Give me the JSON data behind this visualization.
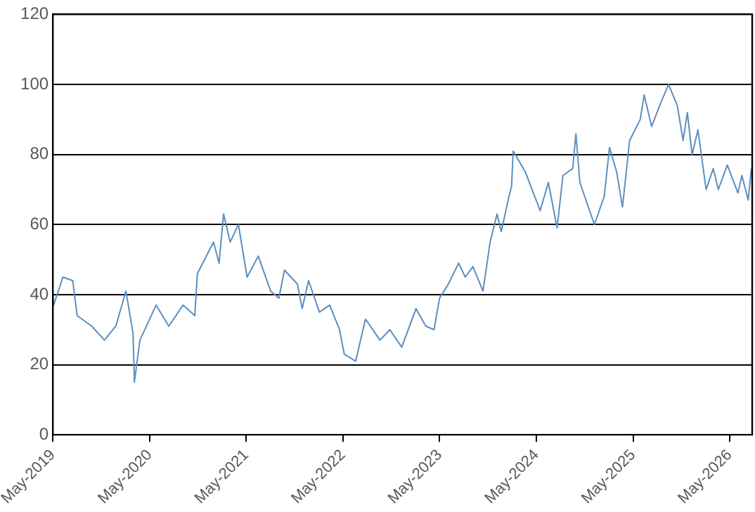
{
  "chart_data": {
    "type": "line",
    "x": [
      "2019-05-01",
      "2019-05-04",
      "2019-06-08",
      "2019-07-15",
      "2019-08-01",
      "2019-09-25",
      "2019-11-12",
      "2019-12-25",
      "2020-02-01",
      "2020-02-28",
      "2020-03-04",
      "2020-03-25",
      "2020-05-25",
      "2020-07-12",
      "2020-09-04",
      "2020-10-18",
      "2020-10-28",
      "2020-12-28",
      "2021-01-18",
      "2021-02-04",
      "2021-03-01",
      "2021-04-01",
      "2021-05-04",
      "2021-06-15",
      "2021-08-01",
      "2021-09-01",
      "2021-09-22",
      "2021-11-10",
      "2021-11-28",
      "2021-12-22",
      "2022-02-01",
      "2022-03-12",
      "2022-04-18",
      "2022-05-06",
      "2022-06-18",
      "2022-07-25",
      "2022-09-18",
      "2022-10-25",
      "2022-12-09",
      "2023-02-01",
      "2023-03-10",
      "2023-04-10",
      "2023-05-01",
      "2023-06-03",
      "2023-07-12",
      "2023-08-06",
      "2023-09-04",
      "2023-10-12",
      "2023-11-08",
      "2023-12-04",
      "2023-12-20",
      "2024-01-18",
      "2024-01-28",
      "2024-02-03",
      "2024-03-20",
      "2024-05-15",
      "2024-06-15",
      "2024-07-18",
      "2024-08-09",
      "2024-09-15",
      "2024-09-27",
      "2024-10-12",
      "2024-12-06",
      "2025-01-12",
      "2025-02-01",
      "2025-02-28",
      "2025-03-22",
      "2025-04-18",
      "2025-05-28",
      "2025-06-12",
      "2025-07-10",
      "2025-08-15",
      "2025-09-12",
      "2025-10-15",
      "2025-11-06",
      "2025-11-22",
      "2025-12-10",
      "2026-01-01",
      "2026-02-01",
      "2026-02-28",
      "2026-03-19",
      "2026-04-22",
      "2026-06-01",
      "2026-06-16",
      "2026-07-10",
      "2026-07-22"
    ],
    "series": [
      {
        "color": "#5b8fc0",
        "values": [
          40,
          37,
          45,
          44,
          34,
          31,
          27,
          31,
          41,
          29,
          15,
          27,
          37,
          31,
          37,
          34,
          46,
          55,
          49,
          63,
          55,
          60,
          45,
          51,
          41,
          39,
          47,
          43,
          36,
          44,
          35,
          37,
          30,
          23,
          21,
          33,
          27,
          30,
          25,
          36,
          31,
          30,
          39,
          43,
          49,
          45,
          48,
          41,
          55,
          63,
          58,
          68,
          71,
          81,
          75,
          64,
          72,
          59,
          74,
          76,
          86,
          72,
          60,
          68,
          82,
          75,
          65,
          84,
          90,
          97,
          88,
          95,
          100,
          94,
          84,
          92,
          80,
          87,
          70,
          76,
          70,
          77,
          69,
          74,
          67,
          76
        ]
      }
    ],
    "xlim": [
      "2019-05-01",
      "2026-07-25"
    ],
    "xticks": [
      {
        "value": "2019-05",
        "label": "May-2019"
      },
      {
        "value": "2020-05",
        "label": "May-2020"
      },
      {
        "value": "2021-05",
        "label": "May-2021"
      },
      {
        "value": "2022-05",
        "label": "May-2022"
      },
      {
        "value": "2023-05",
        "label": "May-2023"
      },
      {
        "value": "2024-05",
        "label": "May-2024"
      },
      {
        "value": "2025-05",
        "label": "May-2025"
      },
      {
        "value": "2026-05",
        "label": "May-2026"
      }
    ],
    "ylim": [
      0,
      120
    ],
    "yticks": [
      0,
      20,
      40,
      60,
      80,
      100,
      120
    ],
    "grid": "y",
    "legend": false,
    "marker": "none",
    "line_style": "solid"
  }
}
